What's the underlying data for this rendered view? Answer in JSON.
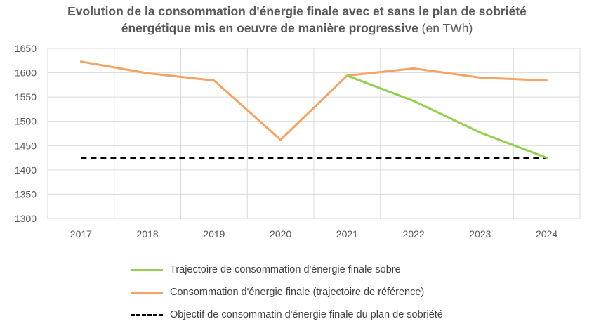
{
  "title": {
    "line1": "Evolution de la consommation d'énergie finale avec et sans le plan de sobriété",
    "line2": "énergétique mis en oeuvre de manière progressive",
    "unit": " (en TWh)"
  },
  "chart_data": {
    "type": "line",
    "title": "Evolution de la consommation d'énergie finale avec et sans le plan de sobriété énergétique mis en oeuvre de manière progressive  (en TWh)",
    "categories": [
      "2017",
      "2018",
      "2019",
      "2020",
      "2021",
      "2022",
      "2023",
      "2024"
    ],
    "ylim": [
      1300,
      1650
    ],
    "yticks": [
      1300,
      1350,
      1400,
      1450,
      1500,
      1550,
      1600,
      1650
    ],
    "grid": true,
    "legend_position": "bottom",
    "series": [
      {
        "name": "Trajectoire de consommation d'énergie finale sobre",
        "color": "#92d050",
        "style": "solid",
        "values": [
          null,
          null,
          null,
          null,
          1594,
          1542,
          1477,
          1425
        ]
      },
      {
        "name": "Consommation d'énergie finale (trajectoire de référence)",
        "color": "#f4a460",
        "style": "solid",
        "values": [
          1623,
          1599,
          1584,
          1462,
          1594,
          1609,
          1590,
          1584
        ]
      },
      {
        "name": "Objectif  de consommatin d'énergie finale du plan de sobriété",
        "color": "#000000",
        "style": "dashed",
        "values": [
          1425,
          1425,
          1425,
          1425,
          1425,
          1425,
          1425,
          1425
        ]
      }
    ]
  }
}
